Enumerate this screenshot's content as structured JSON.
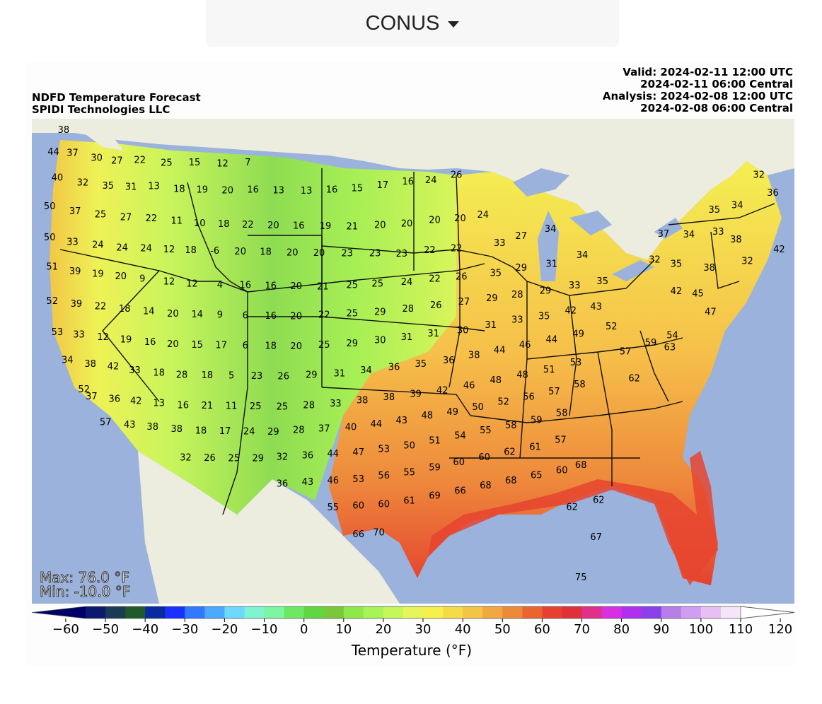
{
  "region_selector": {
    "label": "CONUS"
  },
  "header": {
    "title": "NDFD Temperature Forecast",
    "provider": "SPIDI Technologies LLC",
    "valid_utc": "Valid: 2024-02-11 12:00 UTC",
    "valid_central": "2024-02-11 06:00 Central",
    "analysis_utc": "Analysis: 2024-02-08 12:00 UTC",
    "analysis_central": "2024-02-08 06:00 Central"
  },
  "stats": {
    "max": "Max: 76.0 °F",
    "min": "Min: -10.0 °F"
  },
  "colorbar": {
    "label": "Temperature (°F)",
    "ticks": [
      "−60",
      "−50",
      "−40",
      "−30",
      "−20",
      "−10",
      "0",
      "10",
      "20",
      "30",
      "40",
      "50",
      "60",
      "70",
      "80",
      "90",
      "100",
      "110",
      "120"
    ],
    "tick_values": [
      -60,
      -50,
      -40,
      -30,
      -20,
      -10,
      0,
      10,
      20,
      30,
      40,
      50,
      60,
      70,
      80,
      90,
      100,
      110,
      120
    ],
    "colors": [
      "#0b1a6e",
      "#1a3a55",
      "#1f5a2a",
      "#0a2aa0",
      "#1a30ff",
      "#2f78ff",
      "#4aa8ff",
      "#6ed8ff",
      "#7ff2d2",
      "#7ef5a0",
      "#6ee862",
      "#5fd642",
      "#78c83a",
      "#8de84a",
      "#a6f455",
      "#c4f85a",
      "#e6f55a",
      "#f7f04a",
      "#f5db48",
      "#f4c445",
      "#f0a840",
      "#ec8a3a",
      "#e86530",
      "#e84030",
      "#e0303a",
      "#e0308a",
      "#d830e0",
      "#b030f0",
      "#8a40e8",
      "#b87ee8",
      "#d09ef0",
      "#e6c0f4",
      "#f6e4f8"
    ],
    "underflow_color": "#000066",
    "overflow_color": "#ffffff"
  },
  "map_style": {
    "ocean": "#9bb2dc",
    "land_outside": "#ececdf",
    "great_lakes": "#9bb2dc"
  },
  "temperature_labels": [
    {
      "v": "38",
      "lon": -123.5,
      "lat": 49.3
    },
    {
      "v": "44",
      "lon": -124.3,
      "lat": 48.0
    },
    {
      "v": "37",
      "lon": -122.8,
      "lat": 48.0
    },
    {
      "v": "30",
      "lon": -120.9,
      "lat": 47.8
    },
    {
      "v": "27",
      "lon": -119.3,
      "lat": 47.7
    },
    {
      "v": "22",
      "lon": -117.5,
      "lat": 47.8
    },
    {
      "v": "25",
      "lon": -115.4,
      "lat": 47.7
    },
    {
      "v": "15",
      "lon": -113.2,
      "lat": 47.8
    },
    {
      "v": "12",
      "lon": -111.0,
      "lat": 47.8
    },
    {
      "v": "7",
      "lon": -109.0,
      "lat": 47.9
    },
    {
      "v": "40",
      "lon": -124.0,
      "lat": 46.5
    },
    {
      "v": "32",
      "lon": -122.0,
      "lat": 46.3
    },
    {
      "v": "35",
      "lon": -120.0,
      "lat": 46.2
    },
    {
      "v": "31",
      "lon": -118.2,
      "lat": 46.2
    },
    {
      "v": "13",
      "lon": -116.4,
      "lat": 46.3
    },
    {
      "v": "18",
      "lon": -114.4,
      "lat": 46.2
    },
    {
      "v": "19",
      "lon": -112.6,
      "lat": 46.2
    },
    {
      "v": "20",
      "lon": -110.6,
      "lat": 46.2
    },
    {
      "v": "16",
      "lon": -108.6,
      "lat": 46.3
    },
    {
      "v": "13",
      "lon": -106.6,
      "lat": 46.3
    },
    {
      "v": "13",
      "lon": -104.4,
      "lat": 46.3
    },
    {
      "v": "16",
      "lon": -102.4,
      "lat": 46.4
    },
    {
      "v": "15",
      "lon": -100.4,
      "lat": 46.5
    },
    {
      "v": "17",
      "lon": -98.4,
      "lat": 46.7
    },
    {
      "v": "16",
      "lon": -96.4,
      "lat": 46.9
    },
    {
      "v": "24",
      "lon": -94.6,
      "lat": 47.0
    },
    {
      "v": "26",
      "lon": -92.6,
      "lat": 47.3
    },
    {
      "v": "50",
      "lon": -124.6,
      "lat": 44.8
    },
    {
      "v": "37",
      "lon": -122.6,
      "lat": 44.6
    },
    {
      "v": "25",
      "lon": -120.6,
      "lat": 44.5
    },
    {
      "v": "27",
      "lon": -118.6,
      "lat": 44.4
    },
    {
      "v": "22",
      "lon": -116.6,
      "lat": 44.4
    },
    {
      "v": "11",
      "lon": -114.6,
      "lat": 44.3
    },
    {
      "v": "10",
      "lon": -112.8,
      "lat": 44.2
    },
    {
      "v": "18",
      "lon": -110.9,
      "lat": 44.2
    },
    {
      "v": "22",
      "lon": -109.0,
      "lat": 44.2
    },
    {
      "v": "20",
      "lon": -107.0,
      "lat": 44.2
    },
    {
      "v": "16",
      "lon": -105.0,
      "lat": 44.2
    },
    {
      "v": "19",
      "lon": -102.9,
      "lat": 44.2
    },
    {
      "v": "21",
      "lon": -100.8,
      "lat": 44.2
    },
    {
      "v": "20",
      "lon": -98.6,
      "lat": 44.3
    },
    {
      "v": "20",
      "lon": -96.5,
      "lat": 44.4
    },
    {
      "v": "20",
      "lon": -94.3,
      "lat": 44.6
    },
    {
      "v": "20",
      "lon": -92.3,
      "lat": 44.7
    },
    {
      "v": "24",
      "lon": -90.5,
      "lat": 44.9
    },
    {
      "v": "50",
      "lon": -124.6,
      "lat": 43.0
    },
    {
      "v": "33",
      "lon": -122.8,
      "lat": 42.8
    },
    {
      "v": "24",
      "lon": -120.8,
      "lat": 42.7
    },
    {
      "v": "24",
      "lon": -118.9,
      "lat": 42.6
    },
    {
      "v": "24",
      "lon": -117.0,
      "lat": 42.6
    },
    {
      "v": "12",
      "lon": -115.2,
      "lat": 42.6
    },
    {
      "v": "18",
      "lon": -113.5,
      "lat": 42.6
    },
    {
      "v": "-6",
      "lon": -111.6,
      "lat": 42.6
    },
    {
      "v": "20",
      "lon": -109.6,
      "lat": 42.6
    },
    {
      "v": "18",
      "lon": -107.6,
      "lat": 42.6
    },
    {
      "v": "20",
      "lon": -105.5,
      "lat": 42.6
    },
    {
      "v": "20",
      "lon": -103.4,
      "lat": 42.6
    },
    {
      "v": "23",
      "lon": -101.2,
      "lat": 42.6
    },
    {
      "v": "23",
      "lon": -99.0,
      "lat": 42.6
    },
    {
      "v": "23",
      "lon": -96.9,
      "lat": 42.6
    },
    {
      "v": "22",
      "lon": -94.7,
      "lat": 42.8
    },
    {
      "v": "22",
      "lon": -92.6,
      "lat": 42.9
    },
    {
      "v": "33",
      "lon": -89.2,
      "lat": 43.2
    },
    {
      "v": "27",
      "lon": -87.5,
      "lat": 43.6
    },
    {
      "v": "34",
      "lon": -85.2,
      "lat": 44.0
    },
    {
      "v": "51",
      "lon": -124.4,
      "lat": 41.3
    },
    {
      "v": "39",
      "lon": -122.6,
      "lat": 41.1
    },
    {
      "v": "19",
      "lon": -120.8,
      "lat": 41.0
    },
    {
      "v": "20",
      "lon": -119.0,
      "lat": 40.9
    },
    {
      "v": "9",
      "lon": -117.3,
      "lat": 40.8
    },
    {
      "v": "12",
      "lon": -115.2,
      "lat": 40.7
    },
    {
      "v": "12",
      "lon": -113.4,
      "lat": 40.6
    },
    {
      "v": "4",
      "lon": -111.2,
      "lat": 40.6
    },
    {
      "v": "16",
      "lon": -109.2,
      "lat": 40.6
    },
    {
      "v": "16",
      "lon": -107.2,
      "lat": 40.6
    },
    {
      "v": "20",
      "lon": -105.2,
      "lat": 40.6
    },
    {
      "v": "21",
      "lon": -103.1,
      "lat": 40.6
    },
    {
      "v": "25",
      "lon": -100.8,
      "lat": 40.7
    },
    {
      "v": "25",
      "lon": -98.8,
      "lat": 40.8
    },
    {
      "v": "24",
      "lon": -96.5,
      "lat": 40.9
    },
    {
      "v": "22",
      "lon": -94.3,
      "lat": 41.1
    },
    {
      "v": "26",
      "lon": -92.2,
      "lat": 41.2
    },
    {
      "v": "35",
      "lon": -89.5,
      "lat": 41.4
    },
    {
      "v": "29",
      "lon": -87.5,
      "lat": 41.7
    },
    {
      "v": "31",
      "lon": -85.1,
      "lat": 41.9
    },
    {
      "v": "34",
      "lon": -82.7,
      "lat": 42.4
    },
    {
      "v": "52",
      "lon": -124.4,
      "lat": 39.3
    },
    {
      "v": "39",
      "lon": -122.5,
      "lat": 39.2
    },
    {
      "v": "22",
      "lon": -120.6,
      "lat": 39.1
    },
    {
      "v": "18",
      "lon": -118.7,
      "lat": 39.0
    },
    {
      "v": "14",
      "lon": -116.8,
      "lat": 38.9
    },
    {
      "v": "20",
      "lon": -114.9,
      "lat": 38.8
    },
    {
      "v": "14",
      "lon": -113.0,
      "lat": 38.8
    },
    {
      "v": "9",
      "lon": -111.2,
      "lat": 38.8
    },
    {
      "v": "6",
      "lon": -109.2,
      "lat": 38.8
    },
    {
      "v": "16",
      "lon": -107.2,
      "lat": 38.8
    },
    {
      "v": "20",
      "lon": -105.2,
      "lat": 38.8
    },
    {
      "v": "22",
      "lon": -103.0,
      "lat": 38.9
    },
    {
      "v": "25",
      "lon": -100.8,
      "lat": 39.0
    },
    {
      "v": "29",
      "lon": -98.6,
      "lat": 39.1
    },
    {
      "v": "28",
      "lon": -96.4,
      "lat": 39.3
    },
    {
      "v": "26",
      "lon": -94.2,
      "lat": 39.5
    },
    {
      "v": "27",
      "lon": -92.0,
      "lat": 39.7
    },
    {
      "v": "29",
      "lon": -89.8,
      "lat": 39.9
    },
    {
      "v": "28",
      "lon": -87.8,
      "lat": 40.1
    },
    {
      "v": "29",
      "lon": -85.6,
      "lat": 40.3
    },
    {
      "v": "33",
      "lon": -83.3,
      "lat": 40.6
    },
    {
      "v": "35",
      "lon": -81.1,
      "lat": 40.8
    },
    {
      "v": "53",
      "lon": -124.0,
      "lat": 37.5
    },
    {
      "v": "33",
      "lon": -122.3,
      "lat": 37.4
    },
    {
      "v": "12",
      "lon": -120.4,
      "lat": 37.3
    },
    {
      "v": "19",
      "lon": -118.6,
      "lat": 37.2
    },
    {
      "v": "16",
      "lon": -116.7,
      "lat": 37.1
    },
    {
      "v": "20",
      "lon": -114.9,
      "lat": 37.0
    },
    {
      "v": "15",
      "lon": -113.0,
      "lat": 37.0
    },
    {
      "v": "17",
      "lon": -111.1,
      "lat": 37.0
    },
    {
      "v": "6",
      "lon": -109.2,
      "lat": 37.0
    },
    {
      "v": "18",
      "lon": -107.2,
      "lat": 37.0
    },
    {
      "v": "20",
      "lon": -105.2,
      "lat": 37.0
    },
    {
      "v": "25",
      "lon": -103.0,
      "lat": 37.1
    },
    {
      "v": "29",
      "lon": -100.8,
      "lat": 37.2
    },
    {
      "v": "30",
      "lon": -98.6,
      "lat": 37.4
    },
    {
      "v": "31",
      "lon": -96.5,
      "lat": 37.6
    },
    {
      "v": "31",
      "lon": -94.4,
      "lat": 37.8
    },
    {
      "v": "30",
      "lon": -92.1,
      "lat": 38.0
    },
    {
      "v": "31",
      "lon": -89.9,
      "lat": 38.3
    },
    {
      "v": "33",
      "lon": -87.8,
      "lat": 38.6
    },
    {
      "v": "35",
      "lon": -85.7,
      "lat": 38.8
    },
    {
      "v": "42",
      "lon": -83.6,
      "lat": 39.1
    },
    {
      "v": "43",
      "lon": -81.6,
      "lat": 39.3
    },
    {
      "v": "34",
      "lon": -123.2,
      "lat": 35.9
    },
    {
      "v": "38",
      "lon": -121.4,
      "lat": 35.7
    },
    {
      "v": "42",
      "lon": -119.6,
      "lat": 35.6
    },
    {
      "v": "33",
      "lon": -117.9,
      "lat": 35.4
    },
    {
      "v": "18",
      "lon": -116.0,
      "lat": 35.3
    },
    {
      "v": "28",
      "lon": -114.2,
      "lat": 35.2
    },
    {
      "v": "18",
      "lon": -112.2,
      "lat": 35.2
    },
    {
      "v": "5",
      "lon": -110.3,
      "lat": 35.2
    },
    {
      "v": "23",
      "lon": -108.3,
      "lat": 35.2
    },
    {
      "v": "26",
      "lon": -106.2,
      "lat": 35.2
    },
    {
      "v": "29",
      "lon": -104.0,
      "lat": 35.3
    },
    {
      "v": "31",
      "lon": -101.8,
      "lat": 35.4
    },
    {
      "v": "34",
      "lon": -99.7,
      "lat": 35.6
    },
    {
      "v": "36",
      "lon": -97.5,
      "lat": 35.8
    },
    {
      "v": "35",
      "lon": -95.4,
      "lat": 36.0
    },
    {
      "v": "36",
      "lon": -93.2,
      "lat": 36.2
    },
    {
      "v": "38",
      "lon": -91.2,
      "lat": 36.5
    },
    {
      "v": "44",
      "lon": -89.2,
      "lat": 36.8
    },
    {
      "v": "46",
      "lon": -87.2,
      "lat": 37.1
    },
    {
      "v": "44",
      "lon": -85.1,
      "lat": 37.4
    },
    {
      "v": "49",
      "lon": -83.0,
      "lat": 37.7
    },
    {
      "v": "52",
      "lon": -80.4,
      "lat": 38.1
    },
    {
      "v": "37",
      "lon": -121.3,
      "lat": 33.8
    },
    {
      "v": "36",
      "lon": -119.5,
      "lat": 33.7
    },
    {
      "v": "42",
      "lon": -117.8,
      "lat": 33.6
    },
    {
      "v": "13",
      "lon": -116.0,
      "lat": 33.5
    },
    {
      "v": "16",
      "lon": -114.1,
      "lat": 33.4
    },
    {
      "v": "21",
      "lon": -112.2,
      "lat": 33.4
    },
    {
      "v": "11",
      "lon": -110.3,
      "lat": 33.4
    },
    {
      "v": "25",
      "lon": -108.4,
      "lat": 33.4
    },
    {
      "v": "25",
      "lon": -106.3,
      "lat": 33.4
    },
    {
      "v": "28",
      "lon": -104.2,
      "lat": 33.5
    },
    {
      "v": "33",
      "lon": -102.1,
      "lat": 33.6
    },
    {
      "v": "38",
      "lon": -100.0,
      "lat": 33.8
    },
    {
      "v": "38",
      "lon": -97.9,
      "lat": 34.0
    },
    {
      "v": "39",
      "lon": -95.8,
      "lat": 34.2
    },
    {
      "v": "42",
      "lon": -93.7,
      "lat": 34.4
    },
    {
      "v": "46",
      "lon": -91.6,
      "lat": 34.7
    },
    {
      "v": "48",
      "lon": -89.5,
      "lat": 35.0
    },
    {
      "v": "48",
      "lon": -87.4,
      "lat": 35.3
    },
    {
      "v": "51",
      "lon": -85.3,
      "lat": 35.6
    },
    {
      "v": "53",
      "lon": -83.2,
      "lat": 36.0
    },
    {
      "v": "57",
      "lon": -79.3,
      "lat": 36.6
    },
    {
      "v": "59",
      "lon": -77.3,
      "lat": 37.1
    },
    {
      "v": "62",
      "lon": -78.6,
      "lat": 35.0
    },
    {
      "v": "52",
      "lon": -121.9,
      "lat": 34.2
    },
    {
      "v": "57",
      "lon": -120.2,
      "lat": 32.3
    },
    {
      "v": "43",
      "lon": -118.3,
      "lat": 32.2
    },
    {
      "v": "38",
      "lon": -116.5,
      "lat": 32.1
    },
    {
      "v": "38",
      "lon": -114.6,
      "lat": 32.0
    },
    {
      "v": "18",
      "lon": -112.7,
      "lat": 31.9
    },
    {
      "v": "17",
      "lon": -110.8,
      "lat": 31.9
    },
    {
      "v": "24",
      "lon": -108.9,
      "lat": 31.9
    },
    {
      "v": "29",
      "lon": -107.0,
      "lat": 31.9
    },
    {
      "v": "28",
      "lon": -105.0,
      "lat": 32.0
    },
    {
      "v": "37",
      "lon": -103.0,
      "lat": 32.1
    },
    {
      "v": "40",
      "lon": -100.9,
      "lat": 32.2
    },
    {
      "v": "44",
      "lon": -98.9,
      "lat": 32.4
    },
    {
      "v": "43",
      "lon": -96.9,
      "lat": 32.6
    },
    {
      "v": "48",
      "lon": -94.9,
      "lat": 32.9
    },
    {
      "v": "49",
      "lon": -92.9,
      "lat": 33.1
    },
    {
      "v": "50",
      "lon": -90.9,
      "lat": 33.4
    },
    {
      "v": "52",
      "lon": -88.9,
      "lat": 33.7
    },
    {
      "v": "56",
      "lon": -86.9,
      "lat": 34.0
    },
    {
      "v": "57",
      "lon": -84.9,
      "lat": 34.3
    },
    {
      "v": "58",
      "lon": -82.9,
      "lat": 34.7
    },
    {
      "v": "32",
      "lon": -113.9,
      "lat": 30.3
    },
    {
      "v": "26",
      "lon": -112.0,
      "lat": 30.3
    },
    {
      "v": "25",
      "lon": -110.1,
      "lat": 30.3
    },
    {
      "v": "29",
      "lon": -108.2,
      "lat": 30.3
    },
    {
      "v": "32",
      "lon": -106.3,
      "lat": 30.4
    },
    {
      "v": "36",
      "lon": -104.3,
      "lat": 30.5
    },
    {
      "v": "44",
      "lon": -102.3,
      "lat": 30.6
    },
    {
      "v": "47",
      "lon": -100.3,
      "lat": 30.7
    },
    {
      "v": "53",
      "lon": -98.3,
      "lat": 30.9
    },
    {
      "v": "50",
      "lon": -96.3,
      "lat": 31.1
    },
    {
      "v": "51",
      "lon": -94.3,
      "lat": 31.4
    },
    {
      "v": "54",
      "lon": -92.3,
      "lat": 31.7
    },
    {
      "v": "55",
      "lon": -90.3,
      "lat": 32.0
    },
    {
      "v": "58",
      "lon": -88.3,
      "lat": 32.3
    },
    {
      "v": "59",
      "lon": -86.3,
      "lat": 32.6
    },
    {
      "v": "58",
      "lon": -84.3,
      "lat": 33.0
    },
    {
      "v": "36",
      "lon": -106.3,
      "lat": 28.8
    },
    {
      "v": "43",
      "lon": -104.3,
      "lat": 28.9
    },
    {
      "v": "46",
      "lon": -102.3,
      "lat": 29.0
    },
    {
      "v": "53",
      "lon": -100.3,
      "lat": 29.1
    },
    {
      "v": "56",
      "lon": -98.3,
      "lat": 29.3
    },
    {
      "v": "55",
      "lon": -96.3,
      "lat": 29.5
    },
    {
      "v": "59",
      "lon": -94.3,
      "lat": 29.8
    },
    {
      "v": "60",
      "lon": -92.4,
      "lat": 30.1
    },
    {
      "v": "60",
      "lon": -90.4,
      "lat": 30.4
    },
    {
      "v": "62",
      "lon": -88.4,
      "lat": 30.7
    },
    {
      "v": "61",
      "lon": -86.4,
      "lat": 31.0
    },
    {
      "v": "57",
      "lon": -84.4,
      "lat": 31.4
    },
    {
      "v": "55",
      "lon": -102.3,
      "lat": 27.4
    },
    {
      "v": "60",
      "lon": -100.3,
      "lat": 27.5
    },
    {
      "v": "60",
      "lon": -98.3,
      "lat": 27.6
    },
    {
      "v": "61",
      "lon": -96.3,
      "lat": 27.8
    },
    {
      "v": "69",
      "lon": -94.3,
      "lat": 28.1
    },
    {
      "v": "66",
      "lon": -92.3,
      "lat": 28.4
    },
    {
      "v": "68",
      "lon": -90.3,
      "lat": 28.7
    },
    {
      "v": "68",
      "lon": -88.3,
      "lat": 29.0
    },
    {
      "v": "65",
      "lon": -86.3,
      "lat": 29.3
    },
    {
      "v": "60",
      "lon": -84.3,
      "lat": 29.6
    },
    {
      "v": "68",
      "lon": -82.8,
      "lat": 29.9
    },
    {
      "v": "66",
      "lon": -100.3,
      "lat": 25.8
    },
    {
      "v": "70",
      "lon": -98.7,
      "lat": 25.9
    },
    {
      "v": "62",
      "lon": -83.5,
      "lat": 27.4
    },
    {
      "v": "62",
      "lon": -81.4,
      "lat": 27.8
    },
    {
      "v": "67",
      "lon": -81.6,
      "lat": 25.6
    },
    {
      "v": "75",
      "lon": -82.8,
      "lat": 23.2
    },
    {
      "v": "32",
      "lon": -68.8,
      "lat": 46.7
    },
    {
      "v": "34",
      "lon": -70.5,
      "lat": 45.0
    },
    {
      "v": "35",
      "lon": -72.3,
      "lat": 44.8
    },
    {
      "v": "36",
      "lon": -67.7,
      "lat": 45.6
    },
    {
      "v": "33",
      "lon": -72.0,
      "lat": 43.5
    },
    {
      "v": "38",
      "lon": -70.6,
      "lat": 43.0
    },
    {
      "v": "37",
      "lon": -76.3,
      "lat": 43.5
    },
    {
      "v": "34",
      "lon": -74.3,
      "lat": 43.4
    },
    {
      "v": "42",
      "lon": -67.2,
      "lat": 42.3
    },
    {
      "v": "32",
      "lon": -69.7,
      "lat": 41.7
    },
    {
      "v": "32",
      "lon": -77.0,
      "lat": 42.0
    },
    {
      "v": "35",
      "lon": -75.3,
      "lat": 41.7
    },
    {
      "v": "38",
      "lon": -72.7,
      "lat": 41.4
    },
    {
      "v": "45",
      "lon": -73.6,
      "lat": 39.9
    },
    {
      "v": "42",
      "lon": -75.3,
      "lat": 40.1
    },
    {
      "v": "47",
      "lon": -72.6,
      "lat": 38.8
    },
    {
      "v": "54",
      "lon": -75.6,
      "lat": 37.5
    },
    {
      "v": "63",
      "lon": -75.8,
      "lat": 36.8
    }
  ]
}
